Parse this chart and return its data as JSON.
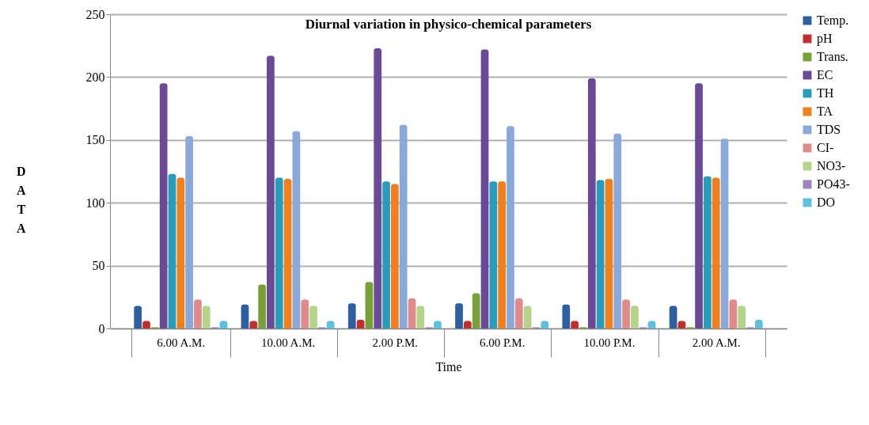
{
  "chart_data": {
    "type": "bar",
    "title": "Diurnal variation in physico-chemical parameters",
    "xlabel": "Time",
    "ylabel": "DATA",
    "categories": [
      "6.00 A.M.",
      "10.00 A.M.",
      "2.00 P.M.",
      "6.00 P.M.",
      "10.00 P.M.",
      "2.00 A.M."
    ],
    "series": [
      {
        "name": "Temp.",
        "color": "#2e5f9e",
        "values": [
          18,
          19,
          20,
          20,
          19,
          18
        ]
      },
      {
        "name": "pH",
        "color": "#c0302e",
        "values": [
          6,
          6,
          7,
          6,
          6,
          6
        ]
      },
      {
        "name": "Trans.",
        "color": "#78a03a",
        "values": [
          1,
          35,
          37,
          28,
          1,
          1
        ]
      },
      {
        "name": "EC",
        "color": "#6a4a94",
        "values": [
          195,
          217,
          223,
          222,
          199,
          195
        ]
      },
      {
        "name": "TH",
        "color": "#2a9bb8",
        "values": [
          123,
          120,
          117,
          117,
          118,
          121
        ]
      },
      {
        "name": "TA",
        "color": "#f07f1e",
        "values": [
          120,
          119,
          115,
          117,
          119,
          120
        ]
      },
      {
        "name": "TDS",
        "color": "#8aa8d8",
        "values": [
          153,
          157,
          162,
          161,
          155,
          151
        ]
      },
      {
        "name": "CI-",
        "color": "#e08b8b",
        "values": [
          23,
          23,
          24,
          24,
          23,
          23
        ]
      },
      {
        "name": "NO3-",
        "color": "#b4d48a",
        "values": [
          18,
          18,
          18,
          18,
          18,
          18
        ]
      },
      {
        "name": "PO43-",
        "color": "#9a86c0",
        "values": [
          1,
          1,
          1,
          1,
          1,
          1
        ]
      },
      {
        "name": "DO",
        "color": "#5fc0dc",
        "values": [
          6,
          6,
          6,
          6,
          6,
          7
        ]
      }
    ],
    "ylim": [
      0,
      250
    ],
    "yticks": [
      0,
      50,
      100,
      150,
      200,
      250
    ],
    "grid": "y",
    "legend": "right"
  }
}
